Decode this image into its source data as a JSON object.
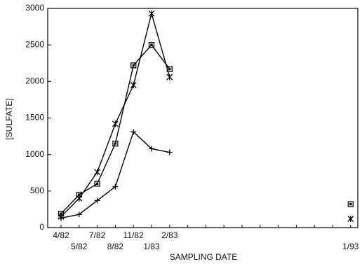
{
  "chart_data": {
    "type": "line",
    "x_label": "SAMPLING DATE",
    "y_label": "[SULFATE]",
    "x": [
      "4/82",
      "5/82",
      "7/82",
      "8/82",
      "11/82",
      "1/83",
      "2/83",
      null,
      null,
      null,
      null,
      null,
      null,
      null,
      null,
      null,
      "1/93"
    ],
    "series": [
      {
        "marker": "square",
        "color": "#000000",
        "values": [
          190,
          450,
          600,
          1150,
          2220,
          2500,
          2170,
          null,
          null,
          null,
          null,
          null,
          null,
          null,
          null,
          null,
          320
        ]
      },
      {
        "marker": "asterisk",
        "color": "#000000",
        "values": [
          150,
          400,
          760,
          1420,
          1950,
          2930,
          2060,
          null,
          null,
          null,
          null,
          null,
          null,
          null,
          null,
          null,
          120
        ]
      },
      {
        "marker": "plus",
        "color": "#000000",
        "values": [
          130,
          180,
          370,
          560,
          1310,
          1080,
          1030,
          null,
          null,
          null,
          null,
          null,
          null,
          null,
          null,
          null,
          null
        ]
      }
    ],
    "ylim": [
      0,
      3000
    ],
    "yticks": [
      0,
      500,
      1000,
      1500,
      2000,
      2500,
      3000
    ]
  }
}
